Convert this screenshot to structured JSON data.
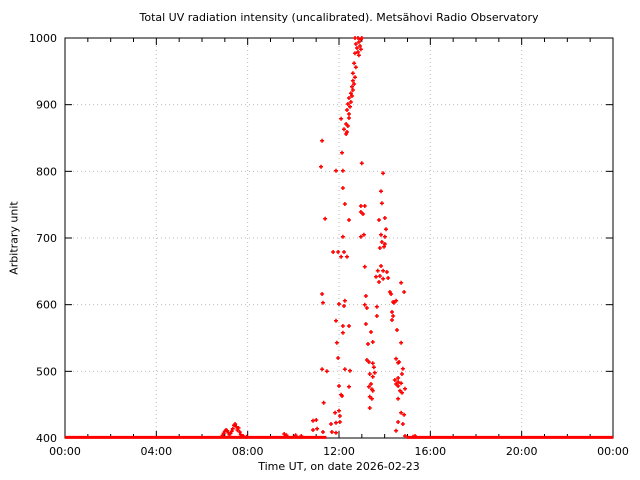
{
  "chart_data": {
    "type": "scatter",
    "title": "Total UV radiation intensity (uncalibrated). Metsähovi Radio Observatory",
    "xlabel": "Time UT, on date 2026-02-23",
    "ylabel": "Arbitrary unit",
    "xlim_hours": [
      0,
      24
    ],
    "ylim": [
      400,
      1000
    ],
    "x_ticks": [
      {
        "hour": 0,
        "label": "00:00"
      },
      {
        "hour": 4,
        "label": "04:00"
      },
      {
        "hour": 8,
        "label": "08:00"
      },
      {
        "hour": 12,
        "label": "12:00"
      },
      {
        "hour": 16,
        "label": "16:00"
      },
      {
        "hour": 20,
        "label": "20:00"
      },
      {
        "hour": 24,
        "label": "00:00"
      }
    ],
    "x_minor_tick_every_hours": 1,
    "y_ticks": [
      400,
      500,
      600,
      700,
      800,
      900,
      1000
    ],
    "grid": true,
    "grid_color": "#bdbdbd",
    "axis_color": "#000000",
    "point_color": "#ff0000",
    "point_style": "plus",
    "baseline": {
      "value": 401,
      "segments_hours": [
        [
          0,
          11.45
        ],
        [
          14.95,
          24
        ]
      ],
      "color": "#ff0000"
    },
    "points": [
      [
        6.9,
        404
      ],
      [
        6.95,
        407
      ],
      [
        7.0,
        410
      ],
      [
        7.05,
        412
      ],
      [
        7.1,
        411
      ],
      [
        7.15,
        408
      ],
      [
        7.2,
        405
      ],
      [
        7.25,
        407
      ],
      [
        7.3,
        410
      ],
      [
        7.35,
        414
      ],
      [
        7.4,
        419
      ],
      [
        7.45,
        421
      ],
      [
        7.5,
        417
      ],
      [
        7.55,
        412
      ],
      [
        7.6,
        415
      ],
      [
        7.65,
        409
      ],
      [
        7.7,
        405
      ],
      [
        7.8,
        403
      ],
      [
        7.95,
        402
      ],
      [
        9.6,
        406
      ],
      [
        9.7,
        404
      ],
      [
        10.1,
        404
      ],
      [
        10.35,
        403
      ],
      [
        10.86,
        426
      ],
      [
        10.86,
        412
      ],
      [
        11.0,
        427
      ],
      [
        11.04,
        414
      ],
      [
        11.21,
        807
      ],
      [
        11.26,
        846
      ],
      [
        11.26,
        616
      ],
      [
        11.3,
        603
      ],
      [
        11.33,
        453
      ],
      [
        11.39,
        729
      ],
      [
        11.26,
        503
      ],
      [
        11.47,
        500
      ],
      [
        11.3,
        409
      ],
      [
        11.65,
        421
      ],
      [
        11.69,
        409
      ],
      [
        11.74,
        679
      ],
      [
        11.87,
        801
      ],
      [
        11.96,
        679
      ],
      [
        11.87,
        576
      ],
      [
        12.17,
        568
      ],
      [
        12.44,
        568
      ],
      [
        12.17,
        558
      ],
      [
        11.91,
        543
      ],
      [
        11.96,
        520
      ],
      [
        12.26,
        503
      ],
      [
        12.48,
        501
      ],
      [
        12.0,
        478
      ],
      [
        12.44,
        477
      ],
      [
        12.13,
        463
      ],
      [
        12.09,
        465
      ],
      [
        11.83,
        438
      ],
      [
        12.0,
        441
      ],
      [
        12.04,
        433
      ],
      [
        11.87,
        423
      ],
      [
        12.04,
        424
      ],
      [
        11.87,
        408
      ],
      [
        12.09,
        672
      ],
      [
        12.35,
        672
      ],
      [
        12.17,
        702
      ],
      [
        12.0,
        601
      ],
      [
        12.22,
        598
      ],
      [
        12.26,
        606
      ],
      [
        12.22,
        679
      ],
      [
        12.13,
        828
      ],
      [
        12.17,
        801
      ],
      [
        12.17,
        775
      ],
      [
        12.26,
        751
      ],
      [
        12.44,
        727
      ],
      [
        12.09,
        879
      ],
      [
        12.44,
        880
      ],
      [
        12.31,
        871
      ],
      [
        12.39,
        868
      ],
      [
        12.22,
        863
      ],
      [
        12.35,
        859
      ],
      [
        12.31,
        856
      ],
      [
        12.48,
        897
      ],
      [
        12.39,
        901
      ],
      [
        12.35,
        892
      ],
      [
        12.44,
        886
      ],
      [
        12.52,
        904
      ],
      [
        12.44,
        910
      ],
      [
        12.57,
        913
      ],
      [
        12.52,
        917
      ],
      [
        12.61,
        922
      ],
      [
        12.57,
        927
      ],
      [
        12.66,
        931
      ],
      [
        12.61,
        936
      ],
      [
        12.7,
        941
      ],
      [
        12.61,
        947
      ],
      [
        12.74,
        956
      ],
      [
        12.66,
        962
      ],
      [
        12.7,
        977
      ],
      [
        12.83,
        979
      ],
      [
        12.87,
        974
      ],
      [
        12.79,
        985
      ],
      [
        12.96,
        983
      ],
      [
        12.92,
        988
      ],
      [
        12.74,
        991
      ],
      [
        12.87,
        994
      ],
      [
        12.7,
        1000
      ],
      [
        12.83,
        1000
      ],
      [
        13.0,
        1000
      ],
      [
        12.96,
        998
      ],
      [
        13.0,
        812
      ],
      [
        12.96,
        748
      ],
      [
        13.13,
        748
      ],
      [
        13.05,
        736
      ],
      [
        12.96,
        739
      ],
      [
        13.09,
        705
      ],
      [
        12.96,
        702
      ],
      [
        13.13,
        657
      ],
      [
        13.18,
        613
      ],
      [
        13.13,
        600
      ],
      [
        13.22,
        595
      ],
      [
        13.18,
        571
      ],
      [
        13.4,
        559
      ],
      [
        13.48,
        544
      ],
      [
        13.27,
        541
      ],
      [
        13.22,
        517
      ],
      [
        13.31,
        514
      ],
      [
        13.48,
        512
      ],
      [
        13.53,
        506
      ],
      [
        13.57,
        498
      ],
      [
        13.35,
        496
      ],
      [
        13.48,
        492
      ],
      [
        13.4,
        481
      ],
      [
        13.31,
        477
      ],
      [
        13.44,
        473
      ],
      [
        13.48,
        471
      ],
      [
        13.35,
        462
      ],
      [
        13.44,
        459
      ],
      [
        13.35,
        445
      ],
      [
        13.66,
        597
      ],
      [
        13.66,
        583
      ],
      [
        13.93,
        797
      ],
      [
        13.84,
        770
      ],
      [
        13.88,
        752
      ],
      [
        13.75,
        727
      ],
      [
        14.01,
        730
      ],
      [
        14.06,
        713
      ],
      [
        14.01,
        702
      ],
      [
        13.88,
        694
      ],
      [
        14.01,
        691
      ],
      [
        13.97,
        687
      ],
      [
        13.79,
        685
      ],
      [
        13.84,
        705
      ],
      [
        13.79,
        643
      ],
      [
        13.62,
        642
      ],
      [
        13.93,
        639
      ],
      [
        14.15,
        640
      ],
      [
        13.75,
        634
      ],
      [
        13.7,
        651
      ],
      [
        13.93,
        651
      ],
      [
        14.1,
        649
      ],
      [
        13.84,
        658
      ],
      [
        14.23,
        619
      ],
      [
        14.28,
        616
      ],
      [
        14.37,
        604
      ],
      [
        14.41,
        603
      ],
      [
        14.5,
        606
      ],
      [
        14.32,
        589
      ],
      [
        14.37,
        583
      ],
      [
        14.32,
        577
      ],
      [
        14.54,
        562
      ],
      [
        14.72,
        543
      ],
      [
        14.5,
        519
      ],
      [
        14.63,
        514
      ],
      [
        14.8,
        504
      ],
      [
        14.45,
        487
      ],
      [
        14.59,
        484
      ],
      [
        14.72,
        482
      ],
      [
        14.89,
        474
      ],
      [
        14.67,
        471
      ],
      [
        14.59,
        513
      ],
      [
        14.76,
        496
      ],
      [
        14.59,
        490
      ],
      [
        14.5,
        481
      ],
      [
        14.59,
        478
      ],
      [
        14.76,
        468
      ],
      [
        14.59,
        459
      ],
      [
        14.72,
        438
      ],
      [
        14.85,
        435
      ],
      [
        14.59,
        424
      ],
      [
        14.8,
        421
      ],
      [
        14.5,
        411
      ],
      [
        14.89,
        403
      ],
      [
        15.24,
        402
      ],
      [
        14.72,
        633
      ],
      [
        14.85,
        619
      ],
      [
        15.33,
        403
      ]
    ]
  }
}
